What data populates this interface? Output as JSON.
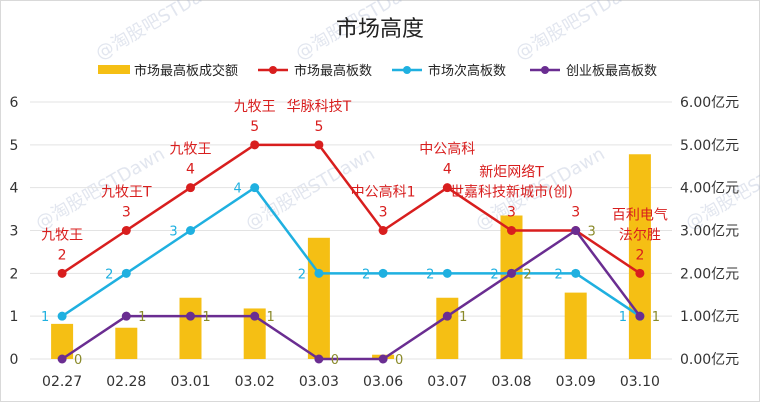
{
  "chart_data": {
    "type": "bar+line",
    "title": "市场高度",
    "categories": [
      "02.27",
      "02.28",
      "03.01",
      "03.02",
      "03.03",
      "03.06",
      "03.07",
      "03.08",
      "03.09",
      "03.10"
    ],
    "left_axis": {
      "min": 0,
      "max": 6,
      "ticks": [
        "0",
        "1",
        "2",
        "3",
        "4",
        "5",
        "6"
      ]
    },
    "right_axis": {
      "min": 0,
      "max": 6,
      "ticks": [
        "0.00亿元",
        "1.00亿元",
        "2.00亿元",
        "3.00亿元",
        "4.00亿元",
        "5.00亿元",
        "6.00亿元"
      ]
    },
    "legend_position": "top",
    "grid": true,
    "bar_series": {
      "name": "市场最高板成交额",
      "color": "#f5bf14",
      "values": [
        0.82,
        0.73,
        1.43,
        1.18,
        2.83,
        0.1,
        1.43,
        3.35,
        1.55,
        4.78
      ]
    },
    "line_series": [
      {
        "name": "市场最高板数",
        "color": "#d81e1e",
        "values": [
          2,
          3,
          4,
          5,
          5,
          3,
          4,
          3,
          3,
          2
        ],
        "annotations": [
          [
            "九牧王"
          ],
          [
            "九牧王T"
          ],
          [
            "九牧王"
          ],
          [
            "九牧王"
          ],
          [
            "华脉科技T"
          ],
          [
            "中公高科1"
          ],
          [
            "中公高科"
          ],
          [
            "新炬网络T",
            "世嘉科技新城市(创)"
          ],
          [],
          [
            "百利电气",
            "法尔胜"
          ]
        ]
      },
      {
        "name": "市场次高板数",
        "color": "#1fb0e0",
        "values": [
          1,
          2,
          3,
          4,
          2,
          2,
          2,
          2,
          2,
          1
        ]
      },
      {
        "name": "创业板最高板数",
        "color": "#6a2d91",
        "values": [
          0,
          1,
          1,
          1,
          0,
          0,
          1,
          2,
          3,
          1
        ]
      }
    ]
  },
  "watermark": "@淘股吧STDawn"
}
